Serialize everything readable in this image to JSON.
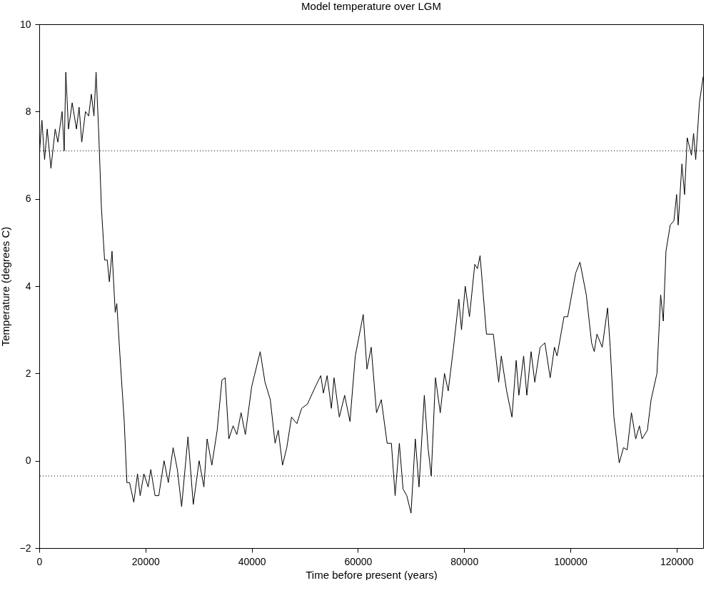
{
  "chart_data": {
    "type": "line",
    "title": "Model temperature over LGM",
    "xlabel": "Time before present (years)",
    "ylabel": "Temperature (degrees C)",
    "x": [
      0,
      500,
      1000,
      1500,
      2200,
      3000,
      3500,
      4300,
      4700,
      5000,
      5500,
      6200,
      7000,
      7500,
      8000,
      8700,
      9300,
      9800,
      10300,
      10700,
      11200,
      11700,
      12300,
      12800,
      13200,
      13700,
      14300,
      14600,
      15300,
      16000,
      16500,
      17000,
      17800,
      18500,
      19000,
      19700,
      20500,
      21000,
      21800,
      22500,
      23500,
      24300,
      25200,
      26000,
      26800,
      28000,
      29000,
      30100,
      31000,
      31600,
      32500,
      33500,
      34400,
      35000,
      35700,
      36500,
      37200,
      38000,
      38800,
      40000,
      41600,
      42500,
      43500,
      44400,
      45000,
      45800,
      46600,
      47500,
      48500,
      49400,
      50500,
      52000,
      53000,
      53500,
      54200,
      55000,
      55500,
      56500,
      57500,
      58500,
      59500,
      61000,
      61700,
      62500,
      63500,
      64400,
      65500,
      66300,
      67000,
      67800,
      68500,
      69200,
      70000,
      70800,
      71500,
      72500,
      73200,
      73800,
      74600,
      75500,
      76300,
      77000,
      78000,
      79000,
      79500,
      80200,
      81000,
      82000,
      82500,
      83000,
      84200,
      85500,
      86500,
      87000,
      88000,
      89000,
      89800,
      90300,
      91200,
      91800,
      92600,
      93300,
      94300,
      95200,
      96200,
      97000,
      97500,
      98800,
      99500,
      101000,
      101800,
      103000,
      104000,
      104500,
      105000,
      106000,
      107000,
      107500,
      108200,
      109200,
      110000,
      110700,
      111500,
      112300,
      113000,
      113500,
      114500,
      115200,
      116300,
      117000,
      117500,
      118000,
      118800,
      119500,
      120000,
      120300,
      121000,
      121500,
      122000,
      122800,
      123200,
      123600,
      124300,
      125000
    ],
    "series": [
      {
        "color": "#000000",
        "values": [
          7.0,
          7.8,
          6.9,
          7.6,
          6.7,
          7.6,
          7.3,
          8.0,
          7.1,
          8.9,
          7.6,
          8.2,
          7.6,
          8.1,
          7.3,
          8.0,
          7.9,
          8.4,
          7.9,
          8.9,
          7.5,
          5.8,
          4.6,
          4.6,
          4.1,
          4.8,
          3.4,
          3.6,
          2.2,
          0.9,
          -0.5,
          -0.5,
          -0.95,
          -0.3,
          -0.8,
          -0.3,
          -0.6,
          -0.2,
          -0.8,
          -0.8,
          0.0,
          -0.5,
          0.3,
          -0.2,
          -1.05,
          0.55,
          -1.0,
          0.0,
          -0.6,
          0.5,
          -0.1,
          0.7,
          1.85,
          1.9,
          0.5,
          0.8,
          0.6,
          1.1,
          0.6,
          1.7,
          2.5,
          1.8,
          1.4,
          0.4,
          0.7,
          -0.1,
          0.3,
          1.0,
          0.85,
          1.2,
          1.3,
          1.7,
          1.95,
          1.55,
          1.95,
          1.2,
          1.9,
          1.0,
          1.5,
          0.9,
          2.4,
          3.35,
          2.1,
          2.6,
          1.1,
          1.4,
          0.4,
          0.4,
          -0.8,
          0.4,
          -0.65,
          -0.8,
          -1.2,
          0.5,
          -0.6,
          1.5,
          0.3,
          -0.35,
          1.9,
          1.1,
          2.0,
          1.6,
          2.6,
          3.7,
          3.0,
          4.0,
          3.3,
          4.5,
          4.4,
          4.7,
          2.9,
          2.9,
          1.8,
          2.4,
          1.6,
          1.0,
          2.3,
          1.5,
          2.4,
          1.5,
          2.5,
          1.8,
          2.6,
          2.7,
          1.9,
          2.6,
          2.4,
          3.3,
          3.3,
          4.3,
          4.55,
          3.8,
          2.7,
          2.5,
          2.9,
          2.6,
          3.5,
          2.6,
          1.0,
          -0.05,
          0.3,
          0.25,
          1.1,
          0.5,
          0.8,
          0.5,
          0.7,
          1.4,
          2.0,
          3.8,
          3.2,
          4.8,
          5.4,
          5.5,
          6.1,
          5.4,
          6.8,
          6.1,
          7.4,
          7.0,
          7.5,
          6.9,
          8.2,
          8.8
        ]
      }
    ],
    "xlim": [
      0,
      125000
    ],
    "xticks": [
      0,
      20000,
      40000,
      60000,
      80000,
      100000,
      120000
    ],
    "ylim": [
      -2,
      10
    ],
    "yticks": [
      -2,
      0,
      2,
      4,
      6,
      8,
      10
    ],
    "ref_lines": [
      {
        "axis": "y",
        "value": 7.1,
        "line_style": "dotted",
        "color": "#000000"
      },
      {
        "axis": "y",
        "value": -0.35,
        "line_style": "dotted",
        "color": "#000000"
      }
    ],
    "grid": false,
    "line_style": "solid",
    "marker": "none"
  }
}
